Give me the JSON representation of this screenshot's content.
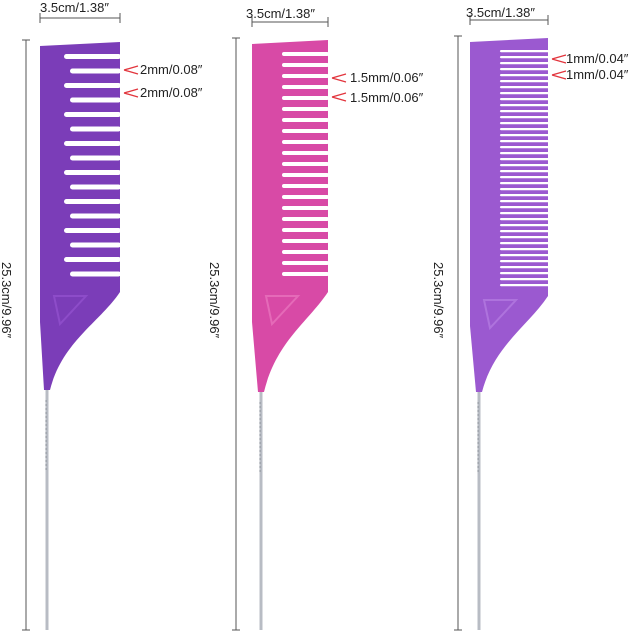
{
  "colors": {
    "comb1": "#7b3db8",
    "comb1_light": "#8d4cc9",
    "comb2": "#d84aa6",
    "comb2_light": "#e56ab8",
    "comb3": "#9b59d0",
    "comb3_light": "#ae73dd",
    "measure_line": "#555555",
    "arrow": "#e2353d",
    "steel": "#b8bcc4"
  },
  "combs": [
    {
      "width_label": "3.5cm/1.38″",
      "length_label": "25.3cm/9.96″",
      "spacing_labels": [
        "2mm/0.08″",
        "2mm/0.08″"
      ],
      "tooth_gap_mm": 2
    },
    {
      "width_label": "3.5cm/1.38″",
      "length_label": "25.3cm/9.96″",
      "spacing_labels": [
        "1.5mm/0.06″",
        "1.5mm/0.06″"
      ],
      "tooth_gap_mm": 1.5
    },
    {
      "width_label": "3.5cm/1.38″",
      "length_label": "25.3cm/9.96″",
      "spacing_labels": [
        "1mm/0.04″",
        "1mm/0.04″"
      ],
      "tooth_gap_mm": 1
    }
  ]
}
